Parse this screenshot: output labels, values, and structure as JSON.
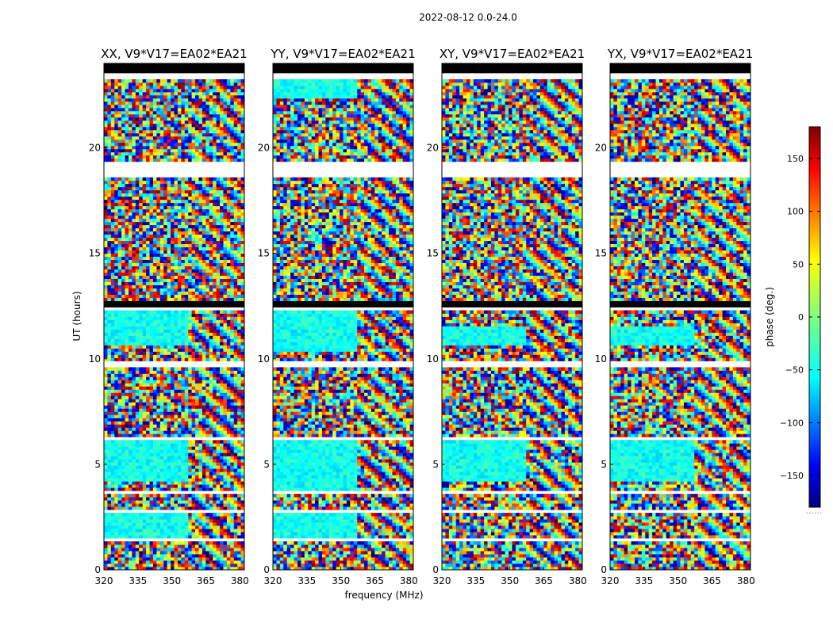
{
  "chart_data": {
    "type": "heatmap",
    "suptitle": "2022-08-12 0.0-24.0",
    "xlabel": "frequency (MHz)",
    "ylabel": "UT (hours)",
    "xlim": [
      320,
      382
    ],
    "ylim": [
      0,
      24
    ],
    "xticks": [
      320,
      335,
      350,
      365,
      380
    ],
    "yticks": [
      0,
      5,
      10,
      15,
      20
    ],
    "colorbar": {
      "label": "phase (deg.)",
      "range": [
        -180,
        180
      ],
      "ticks": [
        -150,
        -100,
        -50,
        0,
        50,
        100,
        150
      ],
      "tick_labels": [
        "−150",
        "−100",
        "−50",
        "0",
        "50",
        "100",
        "150"
      ],
      "extra_label": "......"
    },
    "panels": [
      {
        "title": "XX, V9*V17=EA02*EA21",
        "pol": "XX",
        "coherent_intervals_ut": [
          [
            1.4,
            2.7
          ],
          [
            4.2,
            6.1
          ],
          [
            10.6,
            12.4
          ]
        ]
      },
      {
        "title": "YY, V9*V17=EA02*EA21",
        "pol": "YY",
        "coherent_intervals_ut": [
          [
            1.4,
            2.7
          ],
          [
            3.7,
            6.1
          ],
          [
            10.4,
            12.4
          ],
          [
            22.4,
            23.2
          ]
        ]
      },
      {
        "title": "XY, V9*V17=EA02*EA21",
        "pol": "XY",
        "coherent_intervals_ut": [
          [
            4.2,
            6.1
          ],
          [
            10.6,
            11.6
          ]
        ]
      },
      {
        "title": "YX, V9*V17=EA02*EA21",
        "pol": "YX",
        "coherent_intervals_ut": [
          [
            4.2,
            6.1
          ],
          [
            10.6,
            11.6
          ]
        ]
      }
    ],
    "blank_intervals_ut": [
      [
        1.4,
        1.5
      ],
      [
        2.7,
        2.9
      ],
      [
        3.55,
        3.7
      ],
      [
        6.1,
        6.35
      ],
      [
        9.6,
        9.85
      ],
      [
        12.35,
        12.45
      ],
      [
        17.35,
        17.45
      ],
      [
        18.6,
        19.4
      ],
      [
        23.2,
        23.6
      ]
    ],
    "flagged_black_intervals_ut": [
      [
        12.45,
        12.8
      ],
      [
        23.6,
        24.0
      ]
    ],
    "colormap": "jet"
  }
}
